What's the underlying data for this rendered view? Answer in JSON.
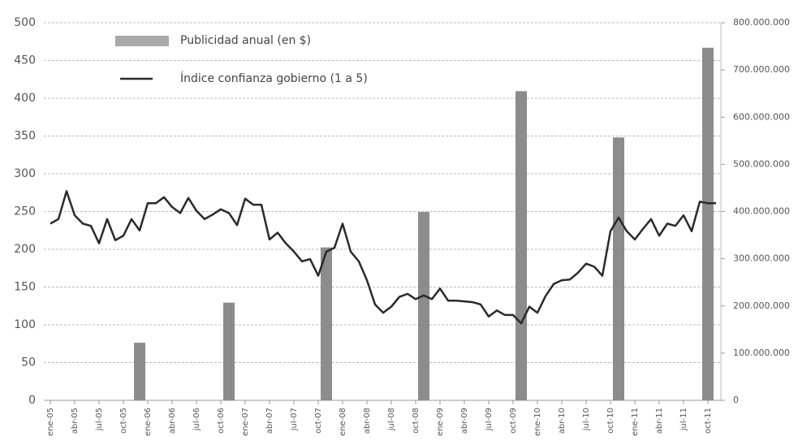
{
  "chart_data": {
    "type": "combo",
    "categories": [
      "ene-05",
      null,
      null,
      "abr-05",
      null,
      null,
      "jul-05",
      null,
      null,
      "oct-05",
      null,
      null,
      "ene-06",
      null,
      null,
      "abr-06",
      null,
      null,
      "jul-06",
      null,
      null,
      "oct-06",
      null,
      null,
      "ene-07",
      null,
      null,
      "abr-07",
      null,
      null,
      "jul-07",
      null,
      null,
      "oct-07",
      null,
      null,
      "ene-08",
      null,
      null,
      "abr-08",
      null,
      null,
      "jul-08",
      null,
      null,
      "oct-08",
      null,
      null,
      "ene-09",
      null,
      null,
      "abr-09",
      null,
      null,
      "jul-09",
      null,
      null,
      "oct-09",
      null,
      null,
      "ene-10",
      null,
      null,
      "abr-10",
      null,
      null,
      "jul-10",
      null,
      null,
      "oct-10",
      null,
      null,
      "ene-11",
      null,
      null,
      "abr-11",
      null,
      null,
      "jul-11",
      null,
      null,
      "oct-11",
      null
    ],
    "series": [
      {
        "name": "Publicidad anual (en $)",
        "type": "bar",
        "axis": "y2",
        "color": "#8c8c8c",
        "values": [
          null,
          null,
          null,
          null,
          null,
          null,
          null,
          null,
          null,
          null,
          null,
          122000000,
          null,
          null,
          null,
          null,
          null,
          null,
          null,
          null,
          null,
          null,
          207000000,
          null,
          null,
          null,
          null,
          null,
          null,
          null,
          null,
          null,
          null,
          null,
          324000000,
          null,
          null,
          null,
          null,
          null,
          null,
          null,
          null,
          null,
          null,
          null,
          399000000,
          null,
          null,
          null,
          null,
          null,
          null,
          null,
          null,
          null,
          null,
          null,
          655000000,
          null,
          null,
          null,
          null,
          null,
          null,
          null,
          null,
          null,
          null,
          null,
          557000000,
          null,
          null,
          null,
          null,
          null,
          null,
          null,
          null,
          null,
          null,
          747000000,
          null
        ]
      },
      {
        "name": "Índice confianza gobierno (1 a 5)",
        "type": "line",
        "color": "#2a2a2a",
        "values": [
          234,
          240,
          277,
          245,
          234,
          231,
          208,
          240,
          212,
          218,
          240,
          225,
          261,
          261,
          269,
          256,
          248,
          268,
          251,
          240,
          246,
          253,
          248,
          232,
          267,
          259,
          259,
          213,
          222,
          208,
          197,
          184,
          187,
          165,
          197,
          202,
          234,
          197,
          184,
          159,
          127,
          116,
          124,
          137,
          141,
          134,
          139,
          134,
          148,
          132,
          132,
          131,
          130,
          127,
          111,
          119,
          113,
          113,
          102,
          124,
          116,
          138,
          154,
          159,
          160,
          169,
          181,
          177,
          165,
          224,
          242,
          224,
          213,
          227,
          240,
          218,
          234,
          231,
          245,
          224,
          263,
          261,
          261
        ]
      }
    ],
    "ylim": [
      0,
      500
    ],
    "yticks": [
      0,
      50,
      100,
      150,
      200,
      250,
      300,
      350,
      400,
      450,
      500
    ],
    "y2lim": [
      0,
      800000000
    ],
    "y2ticks": [
      0,
      {
        "value": 100000000,
        "label": "100.000.000"
      },
      {
        "value": 200000000,
        "label": "200.000.000"
      },
      {
        "value": 300000000,
        "label": "300.000.000"
      },
      {
        "value": 400000000,
        "label": "400.000.000"
      },
      {
        "value": 500000000,
        "label": "500.000.000"
      },
      {
        "value": 600000000,
        "label": "600.000.000"
      },
      {
        "value": 700000000,
        "label": "700.000.000"
      },
      {
        "value": 800000000,
        "label": "800.000.000"
      }
    ],
    "grid": true,
    "legend": "top-left"
  }
}
